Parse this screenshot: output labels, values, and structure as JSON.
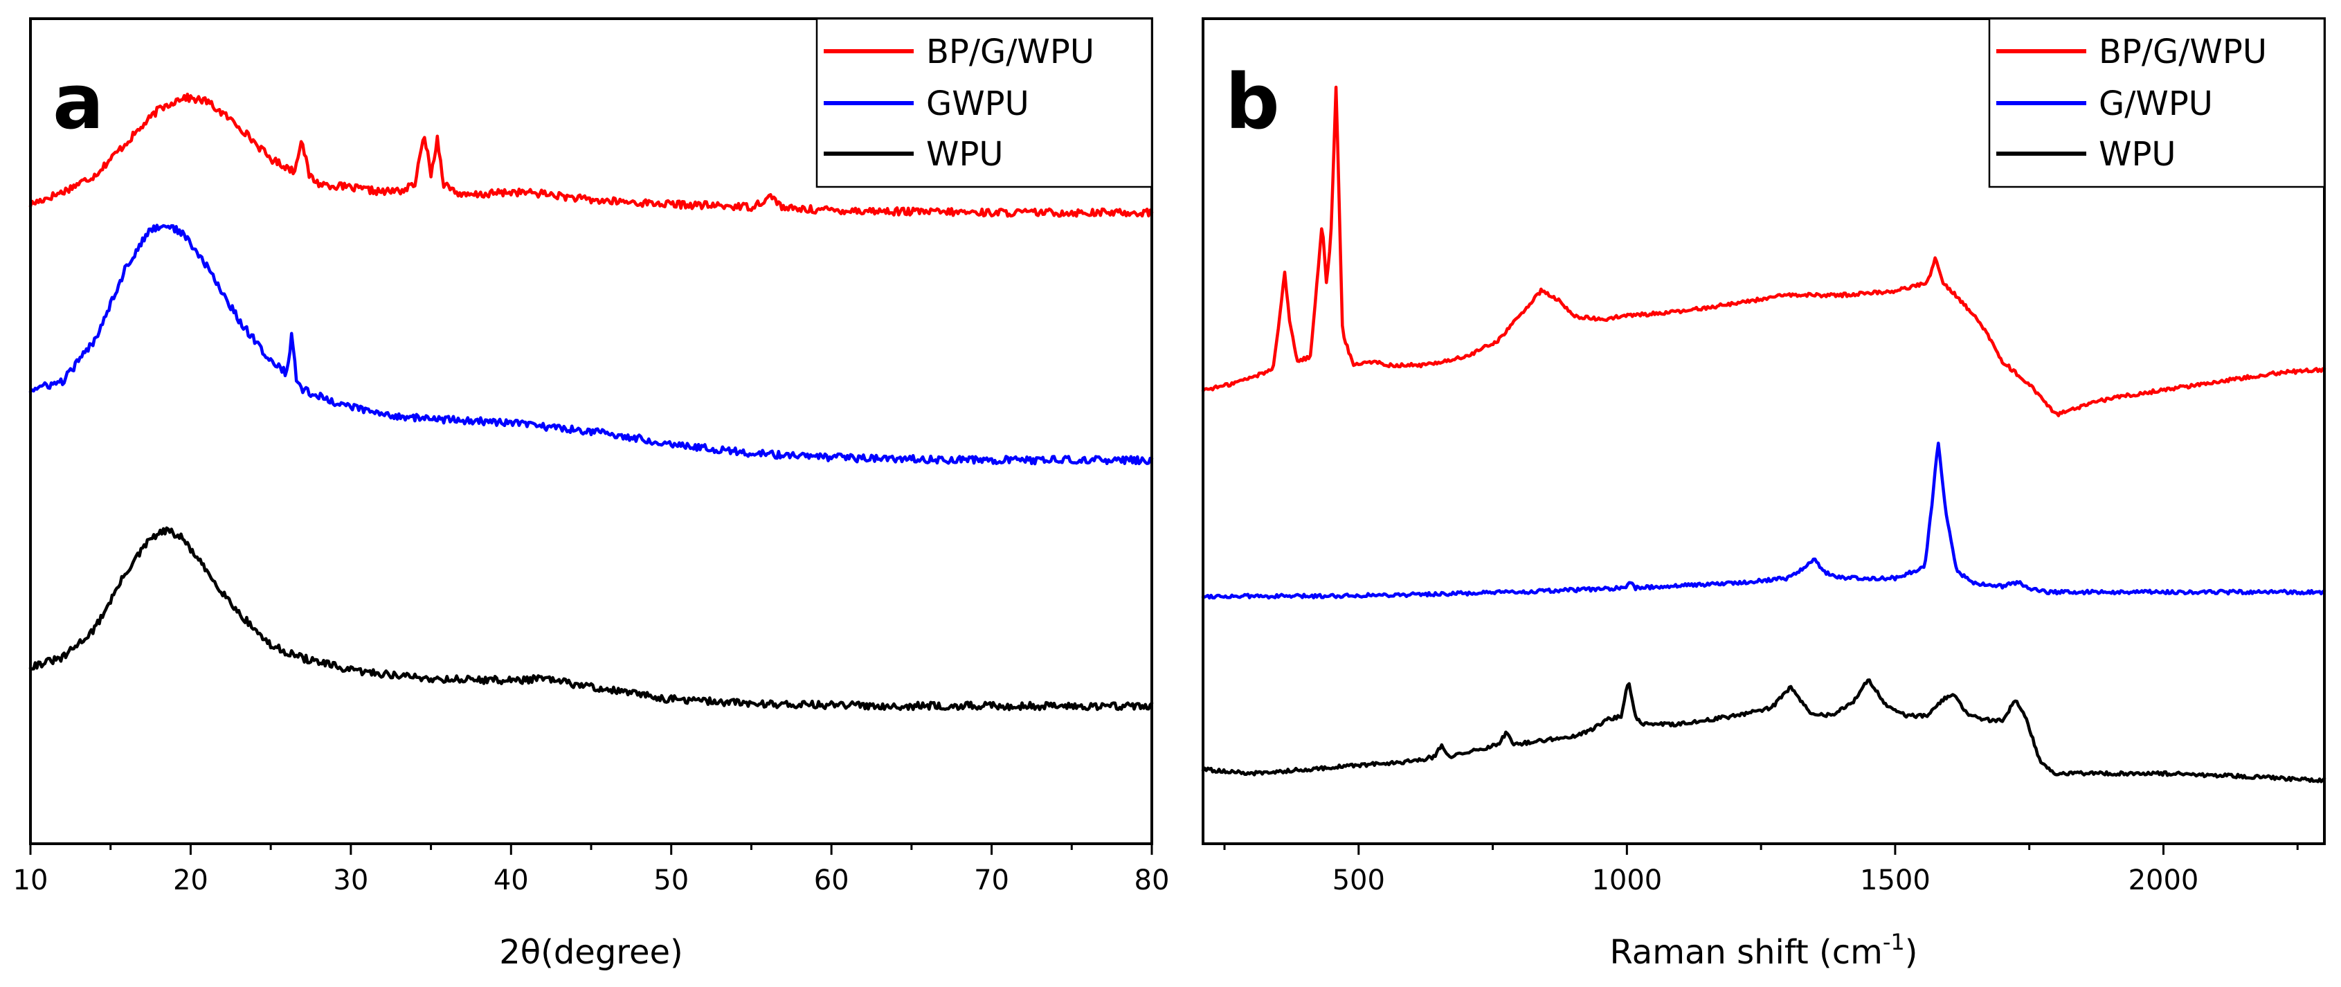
{
  "chart_data": [
    {
      "type": "line",
      "panel_label": "a",
      "title": "",
      "xlabel": "2θ(degree)",
      "ylabel": "",
      "xlim": [
        10,
        80
      ],
      "ylim": [
        0,
        100
      ],
      "x_ticks": [
        "10",
        "20",
        "30",
        "40",
        "50",
        "60",
        "70",
        "80"
      ],
      "y_ticks_visible": false,
      "legend_position": "top-right",
      "series": [
        {
          "name": "BP/G/WPU",
          "color": "#ff0000",
          "x": [
            10,
            12,
            14,
            16,
            18,
            19.5,
            21,
            23,
            25,
            26.5,
            26.9,
            27.4,
            28,
            30,
            32,
            33.3,
            34,
            34.6,
            35,
            35.4,
            35.8,
            37,
            40,
            42,
            45,
            50,
            55,
            56.3,
            57,
            60,
            65,
            70,
            75,
            80
          ],
          "y": [
            77.5,
            79,
            81,
            85,
            89,
            90.5,
            90,
            87,
            83,
            81.5,
            85.5,
            81,
            80,
            79.5,
            79,
            79.2,
            80,
            86,
            81,
            85.5,
            80,
            78.5,
            79,
            78.8,
            78,
            77.5,
            77.2,
            78.5,
            77,
            76.8,
            76.6,
            76.5,
            76.5,
            76.5
          ]
        },
        {
          "name": "GWPU",
          "color": "#0000ff",
          "x": [
            10,
            12,
            14,
            16,
            17.5,
            18.5,
            19.5,
            21,
            23,
            25,
            26,
            26.3,
            26.6,
            27,
            29,
            32,
            35,
            40,
            45,
            50,
            55,
            60,
            65,
            70,
            75,
            80
          ],
          "y": [
            55,
            56,
            61,
            70,
            74.5,
            75,
            74,
            70,
            63.5,
            58.5,
            57,
            61.5,
            56.5,
            55,
            53.5,
            52,
            51.5,
            51,
            50,
            48.5,
            47.3,
            46.8,
            46.6,
            46.5,
            46.5,
            46.5
          ]
        },
        {
          "name": "WPU",
          "color": "#000000",
          "x": [
            10,
            12,
            14,
            16,
            17.5,
            18.5,
            19.5,
            21,
            23,
            25,
            27,
            30,
            35,
            40,
            42,
            45,
            50,
            55,
            60,
            65,
            70,
            75,
            80
          ],
          "y": [
            21.5,
            22.5,
            26,
            33,
            37,
            38,
            37,
            33,
            28,
            24,
            22.5,
            21,
            20,
            19.8,
            20,
            19,
            17.5,
            17,
            16.8,
            16.7,
            16.7,
            16.7,
            16.7
          ]
        }
      ]
    },
    {
      "type": "line",
      "panel_label": "b",
      "title": "",
      "xlabel": "Raman shift (cm",
      "xlabel_superscript": "-1",
      "xlabel_suffix": ")",
      "ylabel": "",
      "xlim": [
        210,
        2300
      ],
      "ylim": [
        0,
        100
      ],
      "x_ticks": [
        "500",
        "1000",
        "1500",
        "2000"
      ],
      "y_ticks_visible": false,
      "legend_position": "top-right",
      "series": [
        {
          "name": "BP/G/WPU",
          "color": "#ff0000",
          "x": [
            210,
            250,
            300,
            340,
            355,
            362,
            370,
            385,
            410,
            425,
            432,
            440,
            448,
            458,
            470,
            490,
            520,
            560,
            620,
            700,
            760,
            800,
            840,
            870,
            900,
            950,
            1000,
            1100,
            1200,
            1300,
            1400,
            1500,
            1560,
            1575,
            1590,
            1620,
            1660,
            1700,
            1760,
            1800,
            1850,
            1900,
            2000,
            2100,
            2200,
            2300
          ],
          "y": [
            55,
            55.5,
            56.5,
            57.5,
            65,
            69.5,
            64,
            58.5,
            59,
            70,
            75.5,
            68,
            73,
            92,
            62,
            58,
            58.5,
            58,
            58,
            59,
            61,
            64,
            67,
            66,
            64,
            63.5,
            64,
            64.5,
            65.5,
            66.5,
            66.5,
            67,
            68,
            71,
            68,
            66,
            63,
            58.5,
            55,
            52,
            53,
            54,
            55,
            56,
            57,
            57.5
          ]
        },
        {
          "name": "G/WPU",
          "color": "#0000ff",
          "x": [
            210,
            400,
            600,
            800,
            1000,
            1005,
            1015,
            1100,
            1200,
            1300,
            1330,
            1350,
            1365,
            1400,
            1500,
            1555,
            1570,
            1580,
            1595,
            1615,
            1650,
            1700,
            1730,
            1750,
            1780,
            1800,
            2000,
            2300
          ],
          "y": [
            30,
            30,
            30.2,
            30.5,
            31,
            31.8,
            31,
            31.3,
            31.6,
            32.2,
            33.5,
            34.5,
            33,
            32.2,
            32.2,
            33.5,
            42,
            49,
            40,
            33,
            31.5,
            31.2,
            31.7,
            31,
            30.5,
            30.5,
            30.5,
            30.5
          ]
        },
        {
          "name": "WPU",
          "color": "#000000",
          "x": [
            210,
            300,
            400,
            500,
            600,
            640,
            655,
            670,
            700,
            760,
            775,
            790,
            840,
            900,
            940,
            960,
            990,
            1003,
            1015,
            1030,
            1100,
            1200,
            1270,
            1305,
            1340,
            1380,
            1420,
            1450,
            1480,
            1520,
            1560,
            1590,
            1610,
            1630,
            1660,
            1700,
            1725,
            1745,
            1770,
            1800,
            1900,
            2000,
            2100,
            2200,
            2300
          ],
          "y": [
            9,
            8.5,
            9,
            9.5,
            10,
            10.5,
            12,
            10.5,
            11,
            12,
            13.5,
            12,
            12.5,
            13,
            14,
            15,
            15.5,
            20,
            15.5,
            14.5,
            14.5,
            15.5,
            16.5,
            19,
            16,
            15.5,
            17,
            20,
            17,
            15.5,
            15.5,
            17.5,
            18,
            16,
            15,
            15,
            17.5,
            15,
            10,
            8.5,
            8.5,
            8.5,
            8.3,
            8,
            7.7
          ]
        }
      ]
    }
  ]
}
